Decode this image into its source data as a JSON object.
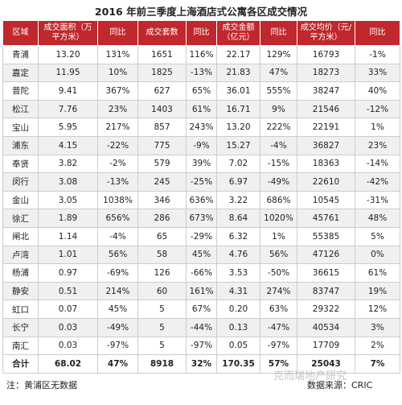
{
  "title": "2016 年前三季度上海酒店式公寓各区成交情况",
  "table": {
    "header": [
      "区域",
      "成交面积（万平方米）",
      "同比",
      "成交套数",
      "同比",
      "成交金额（亿元）",
      "同比",
      "成交均价（元/平方米）",
      "同比"
    ],
    "rows": [
      [
        "青浦",
        "13.20",
        "131%",
        "1651",
        "116%",
        "22.17",
        "129%",
        "16793",
        "-1%"
      ],
      [
        "嘉定",
        "11.95",
        "10%",
        "1825",
        "-13%",
        "21.83",
        "47%",
        "18273",
        "33%"
      ],
      [
        "普陀",
        "9.41",
        "367%",
        "627",
        "65%",
        "36.01",
        "555%",
        "38247",
        "40%"
      ],
      [
        "松江",
        "7.76",
        "23%",
        "1403",
        "61%",
        "16.71",
        "9%",
        "21546",
        "-12%"
      ],
      [
        "宝山",
        "5.95",
        "217%",
        "857",
        "243%",
        "13.20",
        "222%",
        "22191",
        "1%"
      ],
      [
        "浦东",
        "4.15",
        "-22%",
        "775",
        "-9%",
        "15.27",
        "-4%",
        "36827",
        "23%"
      ],
      [
        "奉贤",
        "3.82",
        "-2%",
        "579",
        "39%",
        "7.02",
        "-15%",
        "18363",
        "-14%"
      ],
      [
        "闵行",
        "3.08",
        "-13%",
        "245",
        "-25%",
        "6.97",
        "-49%",
        "22610",
        "-42%"
      ],
      [
        "金山",
        "3.05",
        "1038%",
        "346",
        "636%",
        "3.22",
        "686%",
        "10545",
        "-31%"
      ],
      [
        "徐汇",
        "1.89",
        "656%",
        "286",
        "673%",
        "8.64",
        "1020%",
        "45761",
        "48%"
      ],
      [
        "闸北",
        "1.14",
        "-4%",
        "65",
        "-29%",
        "6.32",
        "1%",
        "55385",
        "5%"
      ],
      [
        "卢湾",
        "1.01",
        "56%",
        "58",
        "45%",
        "4.76",
        "56%",
        "47126",
        "0%"
      ],
      [
        "杨浦",
        "0.97",
        "-69%",
        "126",
        "-66%",
        "3.53",
        "-50%",
        "36615",
        "61%"
      ],
      [
        "静安",
        "0.51",
        "214%",
        "60",
        "161%",
        "4.31",
        "274%",
        "83747",
        "19%"
      ],
      [
        "虹口",
        "0.07",
        "45%",
        "5",
        "67%",
        "0.20",
        "63%",
        "29322",
        "12%"
      ],
      [
        "长宁",
        "0.03",
        "-49%",
        "5",
        "-44%",
        "0.13",
        "-47%",
        "40534",
        "3%"
      ],
      [
        "南汇",
        "0.03",
        "-97%",
        "5",
        "-97%",
        "0.05",
        "-97%",
        "17709",
        "2%"
      ],
      [
        "合计",
        "68.02",
        "47%",
        "8918",
        "32%",
        "170.35",
        "57%",
        "25043",
        "7%"
      ]
    ]
  },
  "footer": {
    "note": "注：黄浦区无数据",
    "source": "数据来源：CRIC"
  },
  "watermark": "克而瑞地产研究"
}
